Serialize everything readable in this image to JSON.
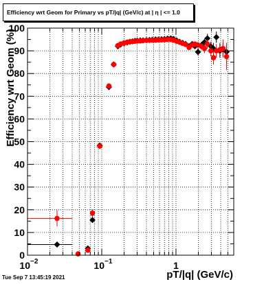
{
  "title": "Efficiency wrt Geom for Primary vs pT/|q| (GeV/c) at |  η | <= 1.0",
  "timestamp": "Tue Sep  7 13:45:19 2021",
  "chart_data": {
    "type": "scatter",
    "xlabel": "pT/|q| (GeV/c)",
    "ylabel": "Efficiency wrt Geom (%)",
    "x_scale": "log",
    "xlim": [
      0.01,
      6.0
    ],
    "ylim": [
      0,
      100
    ],
    "x_ticks": [
      {
        "value": 0.01,
        "base": "10",
        "exp": "−2"
      },
      {
        "value": 0.1,
        "base": "10",
        "exp": "−1"
      },
      {
        "value": 1,
        "base": "1",
        "exp": ""
      }
    ],
    "y_ticks": [
      0,
      10,
      20,
      30,
      40,
      50,
      60,
      70,
      80,
      90,
      100
    ],
    "grid": true,
    "colors": {
      "series_black": "#000000",
      "series_red": "#ff0000",
      "errbar_red": "#e00000"
    },
    "series": [
      {
        "marker": "diamond",
        "color": "#000000",
        "points": [
          {
            "x": 0.025,
            "y": 4.7,
            "xlo": 0.01,
            "xhi": 0.04,
            "yerr": 0.8
          },
          {
            "x": 0.065,
            "y": 3.0,
            "xerr": 0.002,
            "yerr": 0.8
          },
          {
            "x": 0.075,
            "y": 15.5,
            "xerr": 0.002,
            "yerr": 1.2
          },
          {
            "x": 0.094,
            "y": 48.3,
            "xerr": 0.006,
            "yerr": 1.0
          },
          {
            "x": 0.125,
            "y": 74.0,
            "xerr": 0.005,
            "yerr": 1.0
          },
          {
            "x": 0.145,
            "y": 84.0,
            "yerr": 0.8
          },
          {
            "x": 0.165,
            "y": 92.0,
            "yerr": 0.6
          },
          {
            "x": 0.18,
            "y": 92.8
          },
          {
            "x": 0.2,
            "y": 93.3
          },
          {
            "x": 0.22,
            "y": 93.7
          },
          {
            "x": 0.24,
            "y": 94.0
          },
          {
            "x": 0.26,
            "y": 94.2
          },
          {
            "x": 0.28,
            "y": 94.4
          },
          {
            "x": 0.3,
            "y": 94.5
          },
          {
            "x": 0.33,
            "y": 94.6
          },
          {
            "x": 0.36,
            "y": 94.6
          },
          {
            "x": 0.4,
            "y": 94.7
          },
          {
            "x": 0.44,
            "y": 94.8
          },
          {
            "x": 0.48,
            "y": 94.9
          },
          {
            "x": 0.53,
            "y": 95.0
          },
          {
            "x": 0.58,
            "y": 95.0
          },
          {
            "x": 0.64,
            "y": 95.1
          },
          {
            "x": 0.7,
            "y": 95.2
          },
          {
            "x": 0.77,
            "y": 95.4
          },
          {
            "x": 0.85,
            "y": 95.5
          },
          {
            "x": 0.93,
            "y": 95.2
          },
          {
            "x": 1.02,
            "y": 94.6
          },
          {
            "x": 1.12,
            "y": 94.0
          },
          {
            "x": 1.23,
            "y": 93.5
          },
          {
            "x": 1.35,
            "y": 93.0
          },
          {
            "x": 1.5,
            "y": 92.0,
            "yerr": 1.0
          },
          {
            "x": 1.65,
            "y": 93.0,
            "yerr": 1.0
          },
          {
            "x": 1.8,
            "y": 92.0,
            "yerr": 1.0
          },
          {
            "x": 1.98,
            "y": 89.5,
            "yerr": 1.5
          },
          {
            "x": 2.2,
            "y": 92.5,
            "yerr": 1.5
          },
          {
            "x": 2.42,
            "y": 93.8,
            "yerr": 1.5
          },
          {
            "x": 2.65,
            "y": 95.5,
            "yerr": 2.0
          },
          {
            "x": 2.95,
            "y": 92.0,
            "yerr": 2.0
          },
          {
            "x": 3.2,
            "y": 91.0,
            "yerr": 2.5
          },
          {
            "x": 3.5,
            "y": 96.0,
            "yerr": 2.5
          },
          {
            "x": 3.9,
            "y": 90.0,
            "yerr": 3.0
          },
          {
            "x": 4.3,
            "y": 90.5,
            "yerr": 3.0
          },
          {
            "x": 4.8,
            "y": 89.5,
            "yerr": 3.0
          }
        ]
      },
      {
        "marker": "circle",
        "color": "#ff0000",
        "points": [
          {
            "x": 0.025,
            "y": 16.2,
            "xlo": 0.01,
            "xhi": 0.04,
            "yerr": 3.5
          },
          {
            "x": 0.048,
            "y": 0.6,
            "xerr": 0.003,
            "yerr": 0.4
          },
          {
            "x": 0.065,
            "y": 2.2,
            "xerr": 0.002,
            "yerr": 1.2
          },
          {
            "x": 0.075,
            "y": 18.5,
            "xerr": 0.002,
            "yerr": 1.6
          },
          {
            "x": 0.094,
            "y": 48.0,
            "xerr": 0.006,
            "yerr": 1.2
          },
          {
            "x": 0.125,
            "y": 74.5,
            "xerr": 0.005,
            "yerr": 1.2
          },
          {
            "x": 0.145,
            "y": 84.0,
            "yerr": 1.0
          },
          {
            "x": 0.165,
            "y": 92.3,
            "yerr": 0.8
          },
          {
            "x": 0.18,
            "y": 93.0
          },
          {
            "x": 0.2,
            "y": 93.5
          },
          {
            "x": 0.22,
            "y": 93.8
          },
          {
            "x": 0.24,
            "y": 94.0
          },
          {
            "x": 0.26,
            "y": 94.1
          },
          {
            "x": 0.28,
            "y": 94.2
          },
          {
            "x": 0.3,
            "y": 94.3
          },
          {
            "x": 0.33,
            "y": 94.4
          },
          {
            "x": 0.36,
            "y": 94.5
          },
          {
            "x": 0.4,
            "y": 94.6
          },
          {
            "x": 0.44,
            "y": 94.6
          },
          {
            "x": 0.48,
            "y": 94.7
          },
          {
            "x": 0.53,
            "y": 94.7
          },
          {
            "x": 0.58,
            "y": 94.8
          },
          {
            "x": 0.64,
            "y": 94.8
          },
          {
            "x": 0.7,
            "y": 94.9
          },
          {
            "x": 0.77,
            "y": 95.0
          },
          {
            "x": 0.85,
            "y": 95.0
          },
          {
            "x": 0.93,
            "y": 94.7
          },
          {
            "x": 1.02,
            "y": 94.2
          },
          {
            "x": 1.12,
            "y": 93.8
          },
          {
            "x": 1.23,
            "y": 93.3
          },
          {
            "x": 1.35,
            "y": 92.8
          },
          {
            "x": 1.5,
            "y": 91.5,
            "yerr": 1.0
          },
          {
            "x": 1.65,
            "y": 92.5,
            "yerr": 1.0
          },
          {
            "x": 1.8,
            "y": 93.0,
            "yerr": 1.0
          },
          {
            "x": 1.98,
            "y": 92.5,
            "yerr": 1.5
          },
          {
            "x": 2.2,
            "y": 92.0,
            "yerr": 1.5
          },
          {
            "x": 2.42,
            "y": 91.0,
            "yerr": 2.0
          },
          {
            "x": 2.65,
            "y": 93.0,
            "yerr": 2.0
          },
          {
            "x": 2.95,
            "y": 90.0,
            "yerr": 2.5
          },
          {
            "x": 3.2,
            "y": 87.0,
            "yerr": 3.0
          },
          {
            "x": 3.5,
            "y": 90.0,
            "yerr": 3.0
          },
          {
            "x": 3.9,
            "y": 90.5,
            "yerr": 3.0
          },
          {
            "x": 4.3,
            "y": 91.0,
            "yerr": 4.0
          },
          {
            "x": 4.8,
            "y": 87.5,
            "yerr": 6.0
          }
        ]
      }
    ]
  }
}
